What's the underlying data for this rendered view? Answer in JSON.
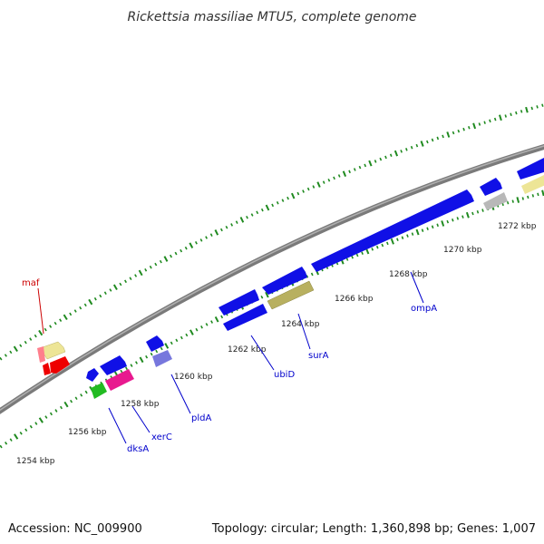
{
  "title": "Rickettsia massiliae MTU5, complete genome",
  "footer": {
    "accession": "Accession: NC_009900",
    "summary": "Topology: circular; Length: 1,360,898 bp; Genes: 1,007"
  },
  "colors": {
    "backbone": "#8a8a8a",
    "tick": "#1f8a1f",
    "blue": "#1010e6",
    "khaki": "#b8b060",
    "pale_yellow": "#ede596",
    "red": "#ee0000",
    "pink": "#ff7f8c",
    "magenta": "#e8198f",
    "green": "#22bb22",
    "lavender": "#7777dd",
    "gray": "#b8b8b8",
    "label_blue": "#0000cc",
    "label_red": "#cc0000"
  },
  "scale_labels": [
    "1254 kbp",
    "1256 kbp",
    "1258 kbp",
    "1260 kbp",
    "1262 kbp",
    "1264 kbp",
    "1266 kbp",
    "1268 kbp",
    "1270 kbp",
    "1272 kbp"
  ],
  "gene_labels": [
    {
      "name": "maf",
      "color": "red"
    },
    {
      "name": "dksA",
      "color": "blue"
    },
    {
      "name": "xerC",
      "color": "blue"
    },
    {
      "name": "pldA",
      "color": "blue"
    },
    {
      "name": "ubiD",
      "color": "blue"
    },
    {
      "name": "surA",
      "color": "blue"
    },
    {
      "name": "ompA",
      "color": "blue"
    }
  ]
}
